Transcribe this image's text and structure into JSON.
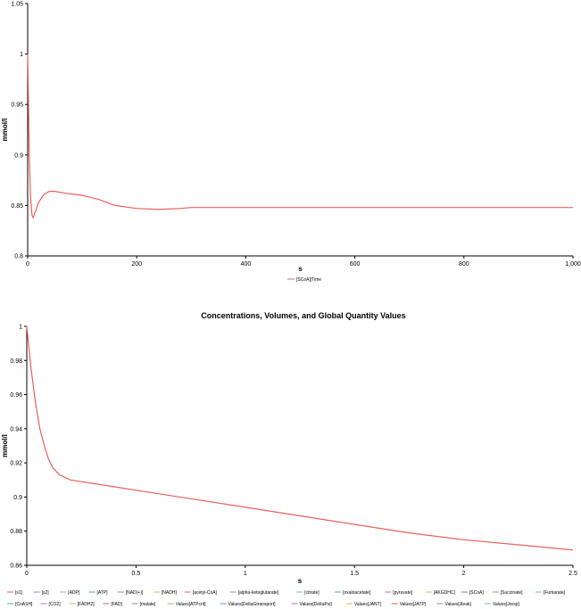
{
  "chart_data": [
    {
      "type": "line",
      "title": "",
      "xlabel": "s",
      "ylabel": "mmol/l",
      "xlim": [
        0,
        1000
      ],
      "ylim": [
        0.8,
        1.05
      ],
      "xticks": [
        0,
        200,
        400,
        600,
        800,
        1000
      ],
      "xtick_labels": [
        "0",
        "200",
        "400",
        "600",
        "800",
        "1,000"
      ],
      "yticks": [
        0.8,
        0.85,
        0.9,
        0.95,
        1,
        1.05
      ],
      "ytick_labels": [
        "0.8",
        "0.85",
        "0.9",
        "0.95",
        "1",
        "1.05"
      ],
      "grid": false,
      "legend_position": "bottom",
      "series": [
        {
          "name": "[SCoA]|Time",
          "color": "#e8605a",
          "x": [
            0,
            1,
            2,
            3,
            5,
            8,
            10,
            15,
            20,
            30,
            40,
            50,
            70,
            100,
            130,
            160,
            200,
            240,
            280,
            300,
            400,
            500,
            600,
            700,
            800,
            900,
            1000
          ],
          "y": [
            1.0,
            0.97,
            0.93,
            0.9,
            0.86,
            0.84,
            0.838,
            0.845,
            0.853,
            0.861,
            0.864,
            0.864,
            0.862,
            0.86,
            0.856,
            0.85,
            0.847,
            0.846,
            0.847,
            0.848,
            0.848,
            0.848,
            0.848,
            0.848,
            0.848,
            0.848,
            0.848
          ]
        }
      ]
    },
    {
      "type": "line",
      "title": "Concentrations, Volumes, and Global Quantity Values",
      "xlabel": "s",
      "ylabel": "mmol/l",
      "xlim": [
        0,
        2.5
      ],
      "ylim": [
        0.86,
        1.0
      ],
      "xticks": [
        0,
        0.5,
        1,
        1.5,
        2,
        2.5
      ],
      "xtick_labels": [
        "0",
        "0.5",
        "1",
        "1.5",
        "2",
        "2.5"
      ],
      "yticks": [
        0.86,
        0.88,
        0.9,
        0.92,
        0.94,
        0.96,
        0.98,
        1
      ],
      "ytick_labels": [
        "0.86",
        "0.88",
        "0.9",
        "0.92",
        "0.94",
        "0.96",
        "0.98",
        "1"
      ],
      "grid": false,
      "legend_position": "bottom",
      "series": [
        {
          "name": "[SCoA]",
          "color": "#e8605a",
          "x": [
            0,
            0.02,
            0.04,
            0.06,
            0.08,
            0.1,
            0.12,
            0.15,
            0.2,
            0.25,
            0.3,
            0.4,
            0.5,
            0.75,
            1.0,
            1.25,
            1.5,
            1.75,
            2.0,
            2.25,
            2.5
          ],
          "y": [
            1.0,
            0.975,
            0.955,
            0.94,
            0.93,
            0.922,
            0.917,
            0.913,
            0.91,
            0.909,
            0.908,
            0.906,
            0.904,
            0.899,
            0.894,
            0.889,
            0.884,
            0.879,
            0.875,
            0.872,
            0.869
          ]
        }
      ],
      "legend": [
        {
          "label": "[s1]",
          "color": "#e8605a"
        },
        {
          "label": "[s2]",
          "color": "#8a8ad0"
        },
        {
          "label": "[ADP]",
          "color": "#7ac47a"
        },
        {
          "label": "[ATP]",
          "color": "#5a9ad8"
        },
        {
          "label": "[NAD(+)]",
          "color": "#c06ac0"
        },
        {
          "label": "[NADH]",
          "color": "#d4c050"
        },
        {
          "label": "[acetyl-CoA]",
          "color": "#e8605a"
        },
        {
          "label": "[alpha-ketoglutarate]",
          "color": "#8a8ad0"
        },
        {
          "label": "[citrate]",
          "color": "#7ac47a"
        },
        {
          "label": "[oxaloacetate]",
          "color": "#5a9ad8"
        },
        {
          "label": "[pyruvate]",
          "color": "#c06ac0"
        },
        {
          "label": "[AKGDHC]",
          "color": "#d4c050"
        },
        {
          "label": "[SCoA]",
          "color": "#e8605a"
        },
        {
          "label": "[Succinate]",
          "color": "#8a8ad0"
        },
        {
          "label": "[Fumarate]",
          "color": "#7ac47a"
        },
        {
          "label": "[CoASH]",
          "color": "#5a9ad8"
        },
        {
          "label": "[CO2]",
          "color": "#c06ac0"
        },
        {
          "label": "[FADH2]",
          "color": "#d4c050"
        },
        {
          "label": "[FAD]",
          "color": "#e8605a"
        },
        {
          "label": "[malate]",
          "color": "#8a8ad0"
        },
        {
          "label": "Values[ATPcrit]",
          "color": "#7ac47a"
        },
        {
          "label": "Values[DeltaGtransport]",
          "color": "#5a9ad8"
        },
        {
          "label": "Values[DeltaPsi]",
          "color": "#c06ac0"
        },
        {
          "label": "Values[JANT]",
          "color": "#d4c050"
        },
        {
          "label": "Values[JATP]",
          "color": "#e8605a"
        },
        {
          "label": "Values[Jleak]",
          "color": "#8a8ad0"
        },
        {
          "label": "Values[Jresp]",
          "color": "#7ac47a"
        }
      ]
    }
  ]
}
